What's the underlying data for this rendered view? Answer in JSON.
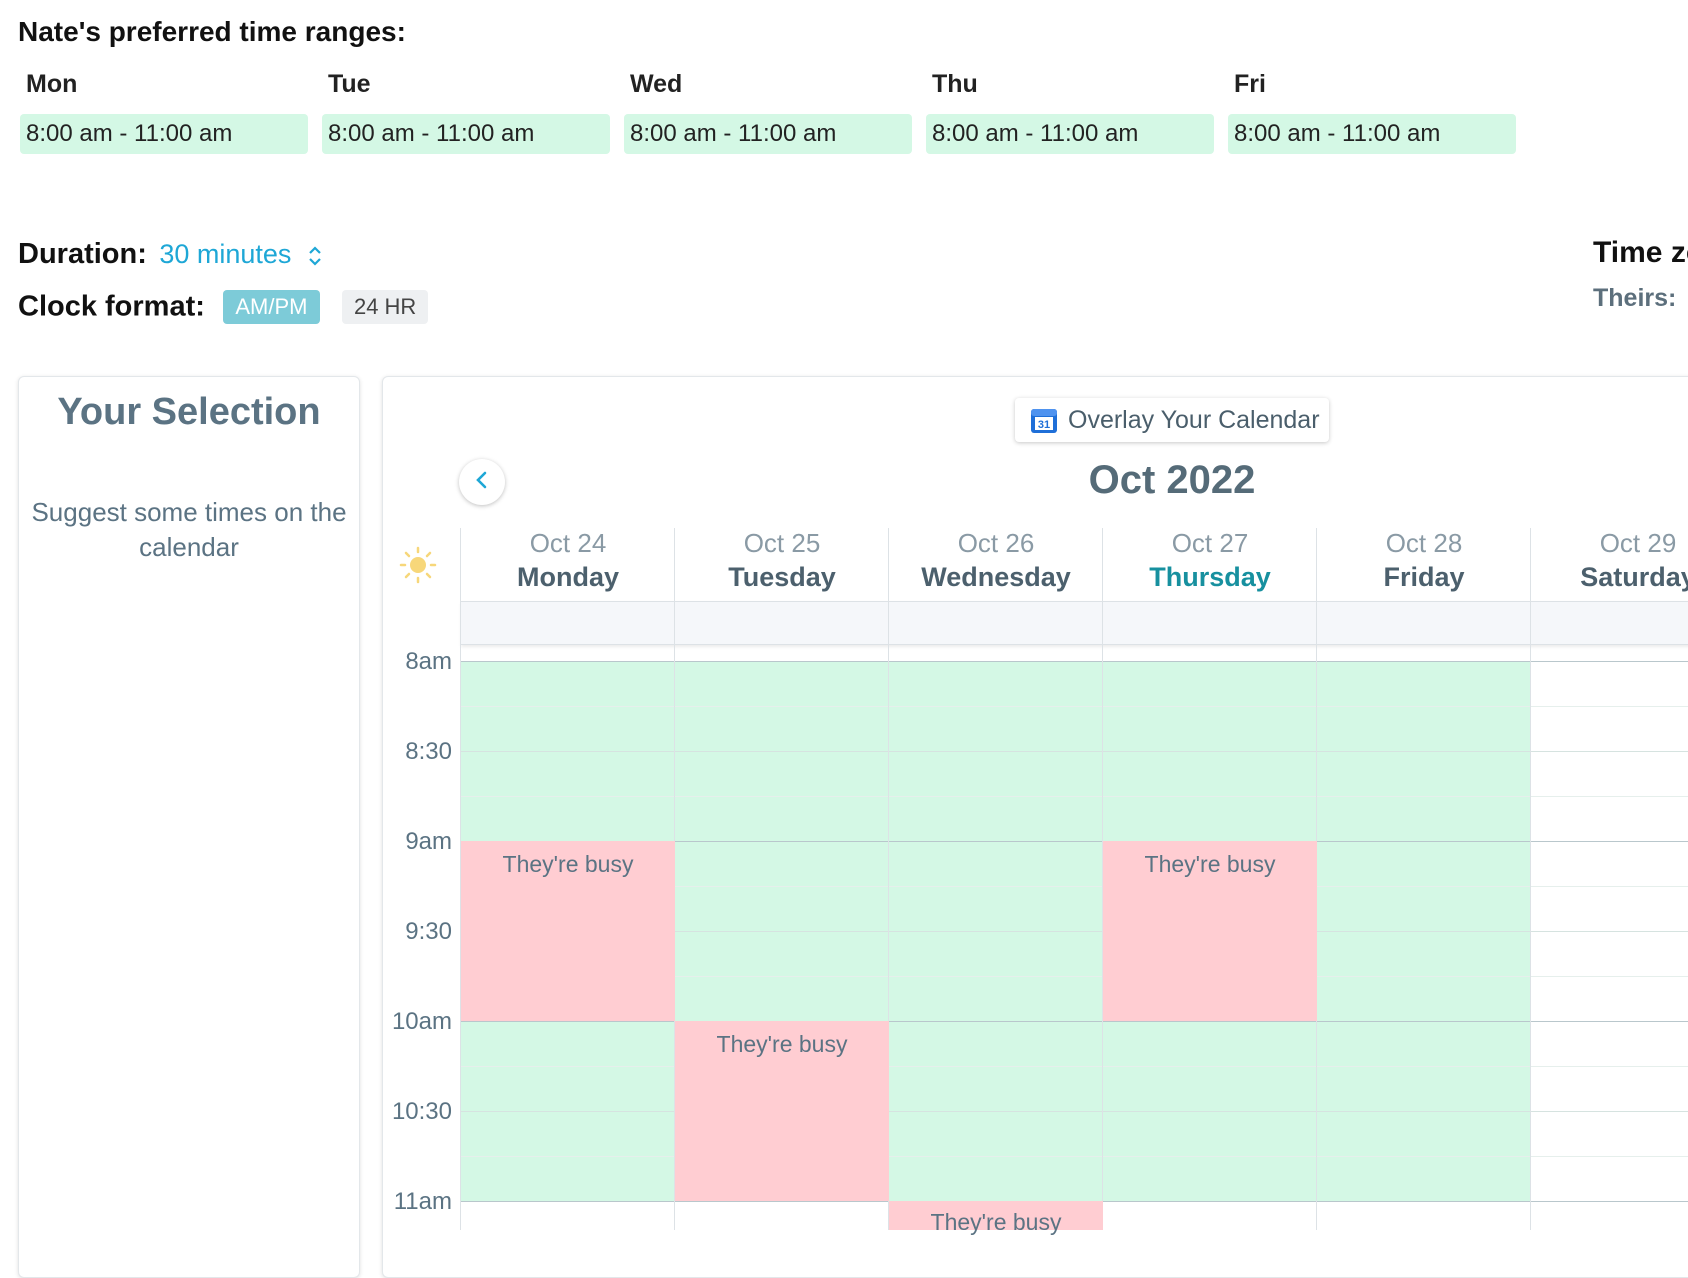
{
  "preferred": {
    "title": "Nate's preferred time ranges:",
    "days": [
      {
        "name": "Mon",
        "range": "8:00 am - 11:00 am"
      },
      {
        "name": "Tue",
        "range": "8:00 am - 11:00 am"
      },
      {
        "name": "Wed",
        "range": "8:00 am - 11:00 am"
      },
      {
        "name": "Thu",
        "range": "8:00 am - 11:00 am"
      },
      {
        "name": "Fri",
        "range": "8:00 am - 11:00 am"
      }
    ]
  },
  "duration": {
    "label": "Duration:",
    "value": "30 minutes",
    "icon": "chevron-up-down-icon"
  },
  "clock_format": {
    "label": "Clock format:",
    "options": [
      "AM/PM",
      "24 HR"
    ],
    "selected": "AM/PM"
  },
  "timezone": {
    "title": "Time zo",
    "theirs_label": "Theirs:"
  },
  "selection_panel": {
    "title": "Your Selection",
    "hint": "Suggest some times on the calendar"
  },
  "calendar": {
    "overlay_button": "Overlay Your Calendar",
    "overlay_icon_text": "31",
    "month": "Oct 2022",
    "columns": [
      {
        "date": "Oct 24",
        "weekday": "Monday"
      },
      {
        "date": "Oct 25",
        "weekday": "Tuesday"
      },
      {
        "date": "Oct 26",
        "weekday": "Wednesday"
      },
      {
        "date": "Oct 27",
        "weekday": "Thursday"
      },
      {
        "date": "Oct 28",
        "weekday": "Friday"
      },
      {
        "date": "Oct 29",
        "weekday": "Saturday"
      }
    ],
    "today_column": 3,
    "time_labels": [
      "8am",
      "8:30",
      "9am",
      "9:30",
      "10am",
      "10:30",
      "11am"
    ],
    "busy_label": "They're busy",
    "colors": {
      "available": "#d4f8e5",
      "busy": "#ffcdd2",
      "accent": "#1ea7d6",
      "today": "#17909f"
    }
  }
}
